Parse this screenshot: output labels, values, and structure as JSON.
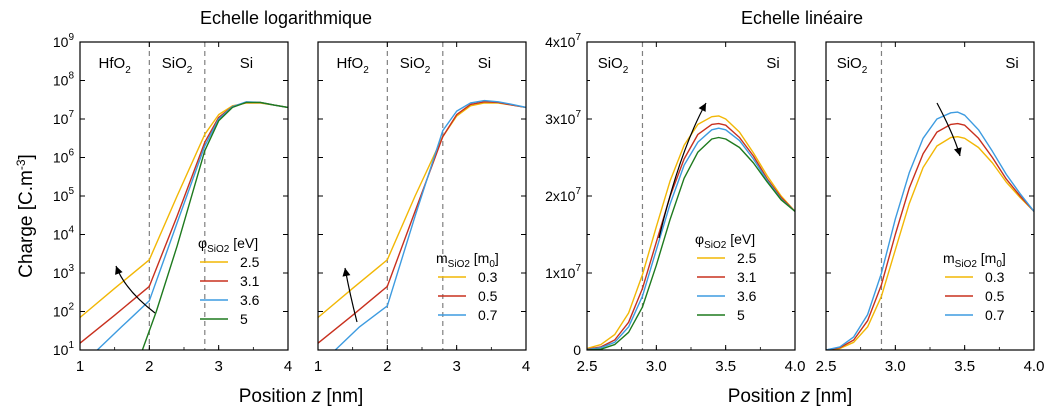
{
  "figure": {
    "group_titles": [
      "Echelle logarithmique",
      "Echelle linéaire"
    ],
    "ylabel": "Charge [C.m",
    "ylabel_sup": "-3",
    "ylabel_end": "]",
    "xlabel": "Position ",
    "xlabel_var": "z",
    "xlabel_unit": " [nm]"
  },
  "colors": {
    "yellow": "#f2b705",
    "red": "#c8301e",
    "blue": "#3d9be0",
    "green": "#1e7a1e",
    "divider": "#808080"
  },
  "chart_data": [
    {
      "type": "line",
      "yscale": "log",
      "xlim": [
        1,
        4
      ],
      "ylim": [
        10,
        1000000000
      ],
      "xticks": [
        "1",
        "2",
        "3",
        "4"
      ],
      "yticks": [
        {
          "base": "10",
          "exp": "1"
        },
        {
          "base": "10",
          "exp": "2"
        },
        {
          "base": "10",
          "exp": "3"
        },
        {
          "base": "10",
          "exp": "4"
        },
        {
          "base": "10",
          "exp": "5"
        },
        {
          "base": "10",
          "exp": "6"
        },
        {
          "base": "10",
          "exp": "7"
        },
        {
          "base": "10",
          "exp": "8"
        },
        {
          "base": "10",
          "exp": "9"
        }
      ],
      "regions": [
        {
          "label": "HfO",
          "sub": "2"
        },
        {
          "label": "SiO",
          "sub": "2"
        },
        {
          "label": "Si",
          "sub": ""
        }
      ],
      "dividers": [
        2.0,
        2.8
      ],
      "legend": {
        "title": "φ",
        "title_sub": "SiO2",
        "title_end": " [eV]",
        "position": "bottom-right"
      },
      "annotation": "curved arrow pointing up",
      "series": [
        {
          "name": "2.5",
          "color": "#f2b705",
          "x": [
            1,
            1.5,
            2,
            2.4,
            2.8,
            3.0,
            3.2,
            3.4,
            3.6,
            3.8,
            4
          ],
          "y": [
            70,
            400,
            2200,
            100000,
            4000000,
            13000000,
            22000000,
            26000000,
            26000000,
            23000000,
            20000000
          ]
        },
        {
          "name": "3.1",
          "color": "#c8301e",
          "x": [
            1,
            1.5,
            2,
            2.4,
            2.8,
            3.0,
            3.2,
            3.4,
            3.6,
            3.8,
            4
          ],
          "y": [
            15,
            80,
            450,
            30000,
            2500000,
            11000000,
            21000000,
            27000000,
            27000000,
            23000000,
            20000000
          ]
        },
        {
          "name": "3.6",
          "color": "#3d9be0",
          "x": [
            1.25,
            1.6,
            2,
            2.4,
            2.8,
            3.0,
            3.2,
            3.4,
            3.6,
            3.8,
            4
          ],
          "y": [
            10,
            40,
            190,
            20000,
            2000000,
            10000000,
            21000000,
            28000000,
            27000000,
            23000000,
            20000000
          ]
        },
        {
          "name": "5",
          "color": "#1e7a1e",
          "x": [
            1.9,
            2.1,
            2.4,
            2.8,
            3.0,
            3.2,
            3.4,
            3.6,
            3.8,
            4
          ],
          "y": [
            10,
            100,
            5000,
            1500000,
            9000000,
            20000000,
            27000000,
            27000000,
            23000000,
            20000000
          ]
        }
      ]
    },
    {
      "type": "line",
      "yscale": "log",
      "xlim": [
        1,
        4
      ],
      "ylim": [
        10,
        1000000000
      ],
      "xticks": [
        "1",
        "2",
        "3",
        "4"
      ],
      "yticks": [],
      "regions": [
        {
          "label": "HfO",
          "sub": "2"
        },
        {
          "label": "SiO",
          "sub": "2"
        },
        {
          "label": "Si",
          "sub": ""
        }
      ],
      "dividers": [
        2.0,
        2.8
      ],
      "legend": {
        "title": "m",
        "title_sub": "SiO2",
        "title_end": " [m",
        "title_sub2": "0",
        "title_end2": "]",
        "position": "bottom-right"
      },
      "annotation": "curved arrow pointing up",
      "series": [
        {
          "name": "0.3",
          "color": "#f2b705",
          "x": [
            1,
            1.5,
            2,
            2.4,
            2.8,
            3.0,
            3.2,
            3.4,
            3.6,
            3.8,
            4
          ],
          "y": [
            70,
            400,
            2200,
            100000,
            3500000,
            12000000,
            22000000,
            26000000,
            26000000,
            23000000,
            20000000
          ]
        },
        {
          "name": "0.5",
          "color": "#c8301e",
          "x": [
            1,
            1.5,
            2,
            2.4,
            2.8,
            3.0,
            3.2,
            3.4,
            3.6,
            3.8,
            4
          ],
          "y": [
            15,
            80,
            450,
            40000,
            3500000,
            13000000,
            24000000,
            28000000,
            27000000,
            23000000,
            20000000
          ]
        },
        {
          "name": "0.7",
          "color": "#3d9be0",
          "x": [
            1.25,
            1.6,
            2,
            2.4,
            2.8,
            3.0,
            3.2,
            3.4,
            3.6,
            3.8,
            4
          ],
          "y": [
            10,
            40,
            140,
            30000,
            5000000,
            16000000,
            26000000,
            30000000,
            28000000,
            24000000,
            20000000
          ]
        }
      ]
    },
    {
      "type": "line",
      "yscale": "linear",
      "xlim": [
        2.5,
        4.0
      ],
      "ylim": [
        0,
        40000000
      ],
      "xticks": [
        "2.5",
        "3.0",
        "3.5",
        "4.0"
      ],
      "yticks": [
        {
          "base": "0",
          "exp": ""
        },
        {
          "base": "1x10",
          "exp": "7"
        },
        {
          "base": "2x10",
          "exp": "7"
        },
        {
          "base": "3x10",
          "exp": "7"
        },
        {
          "base": "4x10",
          "exp": "7"
        }
      ],
      "regions": [
        {
          "label": "SiO",
          "sub": "2"
        },
        {
          "label": "Si",
          "sub": ""
        }
      ],
      "dividers": [
        2.9
      ],
      "legend": {
        "title": "φ",
        "title_sub": "SiO2",
        "title_end": " [eV]",
        "position": "bottom-right"
      },
      "annotation": "curved arrow pointing up",
      "series": [
        {
          "name": "2.5",
          "color": "#f2b705",
          "x": [
            2.5,
            2.6,
            2.7,
            2.8,
            2.9,
            3.0,
            3.1,
            3.2,
            3.3,
            3.4,
            3.45,
            3.5,
            3.6,
            3.7,
            3.8,
            3.9,
            4.0
          ],
          "y": [
            200000,
            700000,
            2000000,
            4800000,
            9800000,
            16000000,
            22000000,
            26600000,
            29300000,
            30300000,
            30400000,
            30000000,
            28300000,
            25600000,
            22600000,
            20000000,
            18000000
          ]
        },
        {
          "name": "3.1",
          "color": "#c8301e",
          "x": [
            2.5,
            2.6,
            2.7,
            2.8,
            2.9,
            3.0,
            3.1,
            3.2,
            3.3,
            3.4,
            3.45,
            3.5,
            3.6,
            3.7,
            3.8,
            3.9,
            4.0
          ],
          "y": [
            100000,
            400000,
            1300000,
            3600000,
            8000000,
            14000000,
            20000000,
            24800000,
            28000000,
            29300000,
            29400000,
            29200000,
            27600000,
            25200000,
            22200000,
            19800000,
            18000000
          ]
        },
        {
          "name": "3.6",
          "color": "#3d9be0",
          "x": [
            2.5,
            2.6,
            2.7,
            2.8,
            2.9,
            3.0,
            3.1,
            3.2,
            3.3,
            3.4,
            3.45,
            3.5,
            3.6,
            3.7,
            3.8,
            3.9,
            4.0
          ],
          "y": [
            50000,
            300000,
            1000000,
            3000000,
            7000000,
            13000000,
            19000000,
            24000000,
            27000000,
            28600000,
            28800000,
            28600000,
            27200000,
            24800000,
            22000000,
            19600000,
            18000000
          ]
        },
        {
          "name": "5",
          "color": "#1e7a1e",
          "x": [
            2.5,
            2.6,
            2.7,
            2.8,
            2.9,
            3.0,
            3.1,
            3.2,
            3.3,
            3.4,
            3.45,
            3.5,
            3.6,
            3.7,
            3.8,
            3.9,
            4.0
          ],
          "y": [
            0,
            100000,
            700000,
            2300000,
            5600000,
            11000000,
            17000000,
            22300000,
            25700000,
            27400000,
            27600000,
            27400000,
            26300000,
            24300000,
            21800000,
            19500000,
            18000000
          ]
        }
      ]
    },
    {
      "type": "line",
      "yscale": "linear",
      "xlim": [
        2.5,
        4.0
      ],
      "ylim": [
        0,
        40000000
      ],
      "xticks": [
        "2.5",
        "3.0",
        "3.5",
        "4.0"
      ],
      "yticks": [],
      "regions": [
        {
          "label": "SiO",
          "sub": "2"
        },
        {
          "label": "Si",
          "sub": ""
        }
      ],
      "dividers": [
        2.9
      ],
      "legend": {
        "title": "m",
        "title_sub": "SiO2",
        "title_end": " [m",
        "title_sub2": "0",
        "title_end2": "]",
        "position": "bottom-right"
      },
      "annotation": "curved arrow pointing down",
      "series": [
        {
          "name": "0.3",
          "color": "#f2b705",
          "x": [
            2.5,
            2.6,
            2.7,
            2.8,
            2.9,
            3.0,
            3.1,
            3.2,
            3.3,
            3.4,
            3.45,
            3.5,
            3.6,
            3.7,
            3.8,
            3.9,
            4.0
          ],
          "y": [
            0,
            200000,
            1000000,
            3000000,
            7000000,
            13000000,
            19000000,
            23700000,
            26500000,
            27600000,
            27700000,
            27500000,
            26300000,
            24300000,
            21800000,
            19800000,
            18000000
          ]
        },
        {
          "name": "0.5",
          "color": "#c8301e",
          "x": [
            2.5,
            2.6,
            2.7,
            2.8,
            2.9,
            3.0,
            3.1,
            3.2,
            3.3,
            3.4,
            3.45,
            3.5,
            3.6,
            3.7,
            3.8,
            3.9,
            4.0
          ],
          "y": [
            0,
            300000,
            1300000,
            3800000,
            8500000,
            15000000,
            21000000,
            25500000,
            28300000,
            29300000,
            29400000,
            29200000,
            27500000,
            25000000,
            22200000,
            20000000,
            18000000
          ]
        },
        {
          "name": "0.7",
          "color": "#3d9be0",
          "x": [
            2.5,
            2.6,
            2.7,
            2.8,
            2.9,
            3.0,
            3.1,
            3.2,
            3.3,
            3.4,
            3.45,
            3.5,
            3.6,
            3.7,
            3.8,
            3.9,
            4.0
          ],
          "y": [
            0,
            400000,
            1700000,
            4600000,
            10000000,
            17000000,
            23000000,
            27500000,
            30000000,
            30800000,
            30900000,
            30500000,
            28600000,
            25800000,
            22800000,
            20300000,
            18000000
          ]
        }
      ]
    }
  ]
}
